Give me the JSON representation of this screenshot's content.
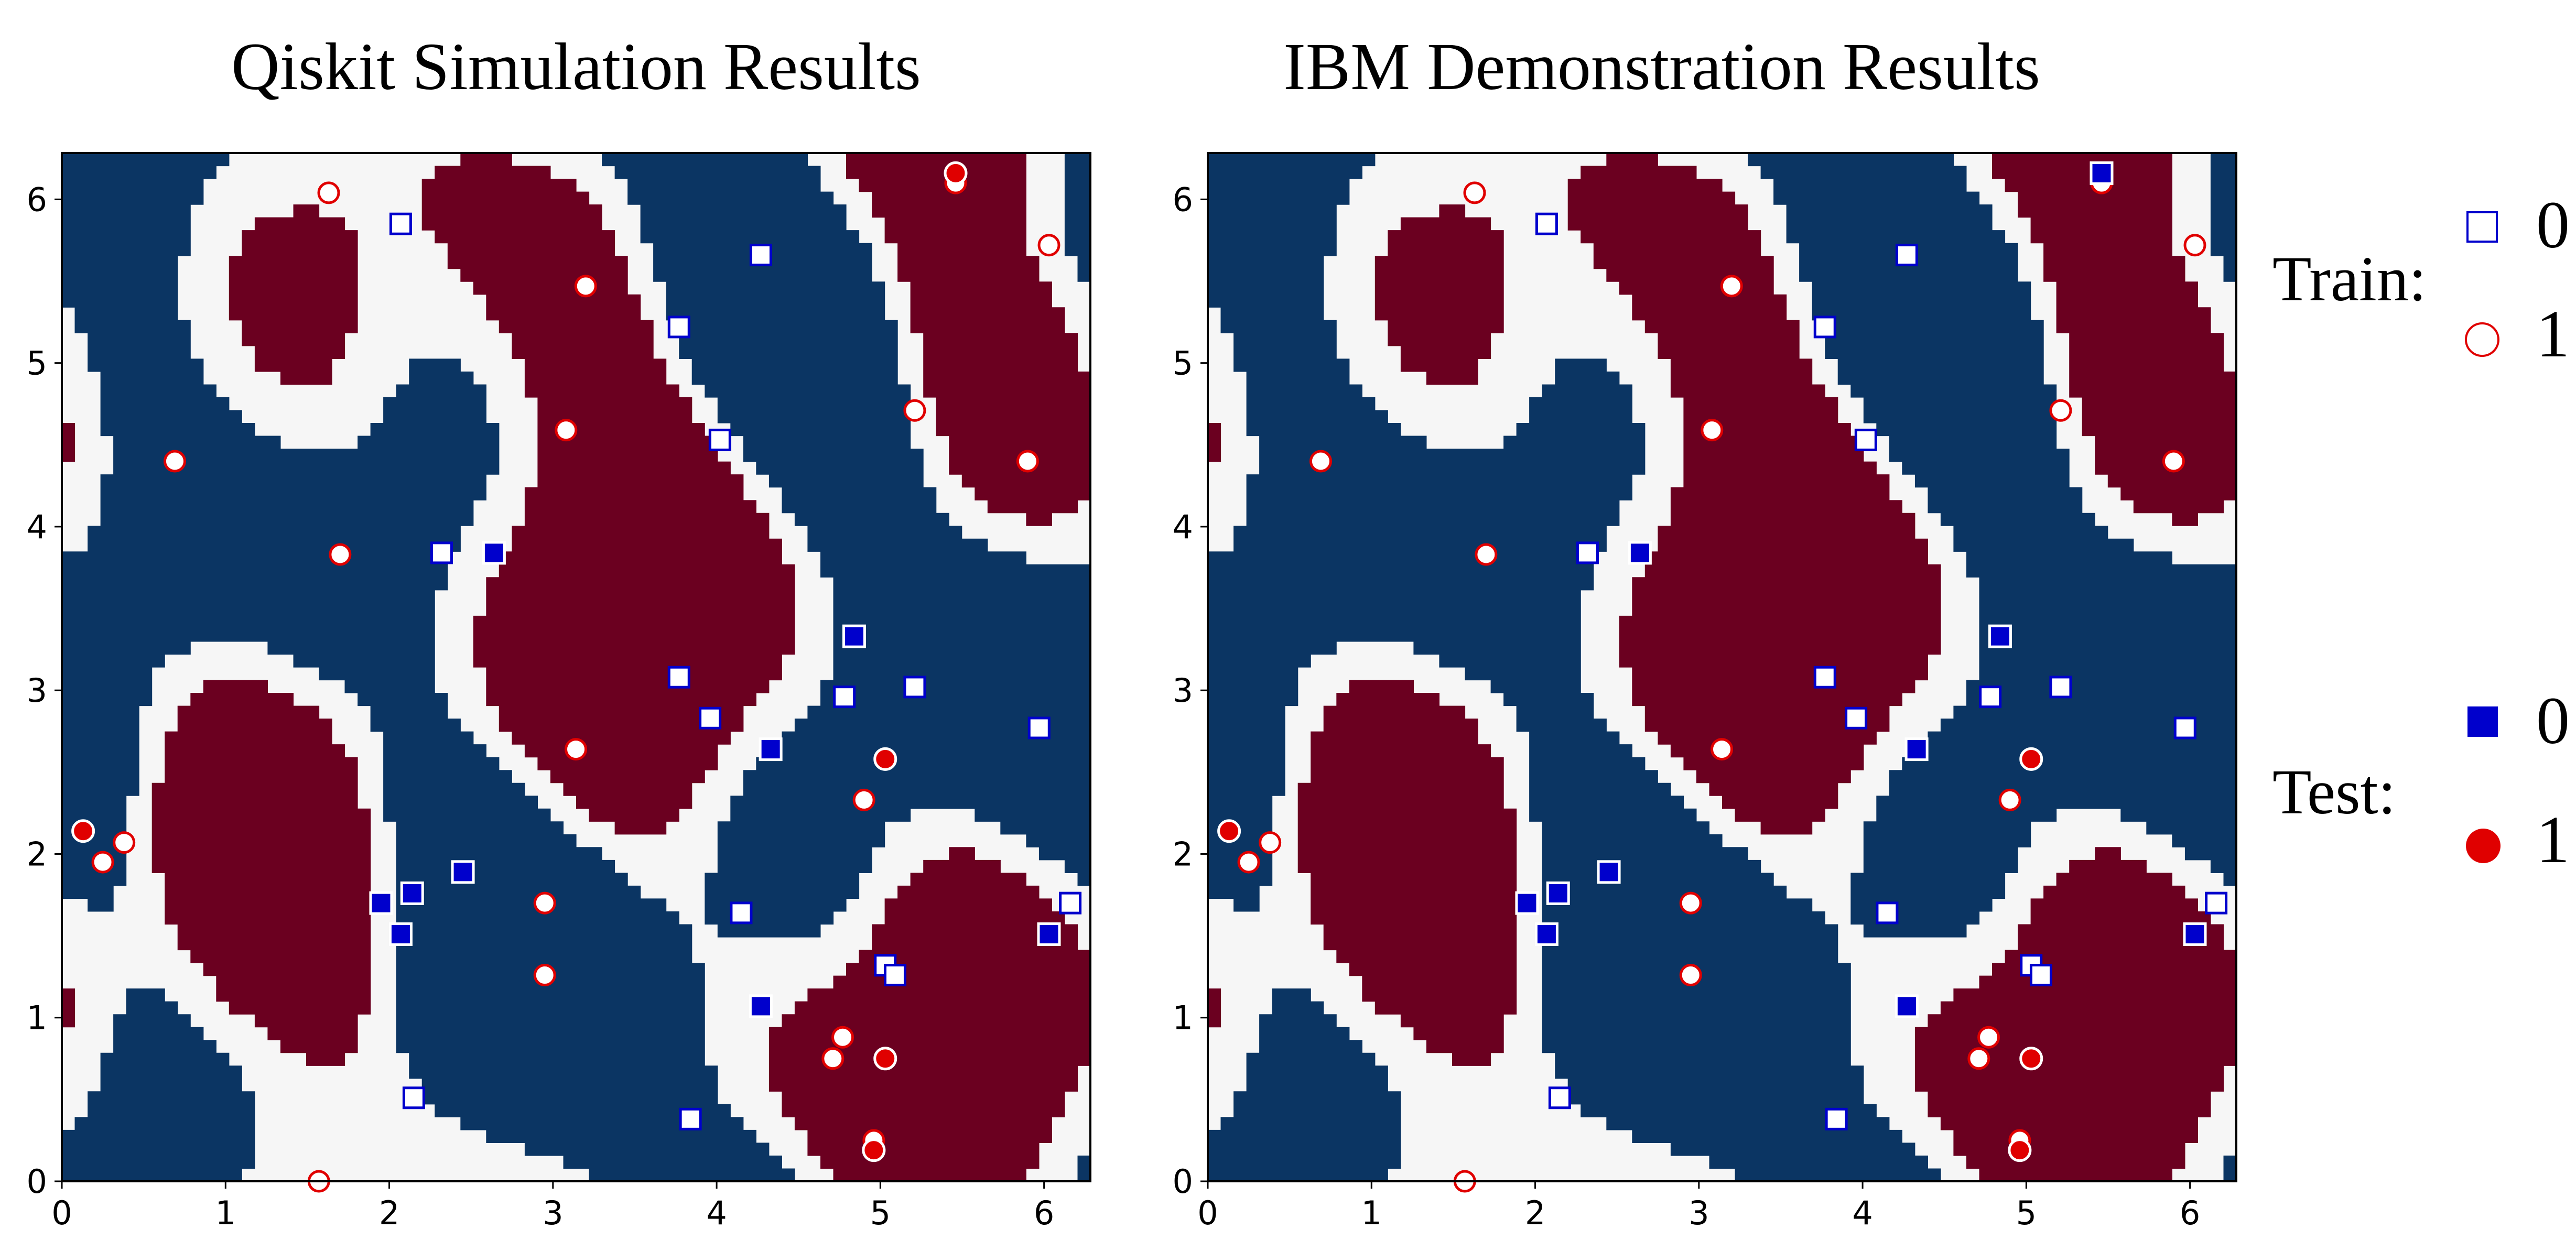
{
  "colors": {
    "region_class_0": "#0b3563",
    "region_class_1": "#6b0020",
    "background": "#f6f6f6",
    "marker_class_0": "#0000cc",
    "marker_class_1": "#e00000"
  },
  "legend": {
    "train_label": "Train:",
    "test_label": "Test:",
    "class_0": "0",
    "class_1": "1"
  },
  "chart_data": [
    {
      "type": "scatter",
      "title": "Qiskit Simulation Results",
      "xlim": [
        0,
        6.283
      ],
      "ylim": [
        0,
        6.283
      ],
      "xticks": [
        "0",
        "1",
        "2",
        "3",
        "4",
        "5",
        "6"
      ],
      "yticks": [
        "0",
        "1",
        "2",
        "3",
        "4",
        "5",
        "6"
      ],
      "background": "decision regions: class 0 (dark blue), class 1 (dark red), unassigned (light gray)",
      "series": [
        {
          "name": "Train 0",
          "marker": "hollow-square",
          "points": [
            [
              2.07,
              5.85
            ],
            [
              3.77,
              5.22
            ],
            [
              4.27,
              5.66
            ],
            [
              4.02,
              4.53
            ],
            [
              2.32,
              3.84
            ],
            [
              3.77,
              3.08
            ],
            [
              3.96,
              2.83
            ],
            [
              4.78,
              2.96
            ],
            [
              5.21,
              3.02
            ],
            [
              5.97,
              2.77
            ],
            [
              4.15,
              1.64
            ],
            [
              5.03,
              1.32
            ],
            [
              5.09,
              1.26
            ],
            [
              6.16,
              1.7
            ],
            [
              2.15,
              0.51
            ],
            [
              3.84,
              0.38
            ]
          ]
        },
        {
          "name": "Train 1",
          "marker": "hollow-circle",
          "points": [
            [
              1.63,
              6.04
            ],
            [
              3.2,
              5.47
            ],
            [
              5.46,
              6.1
            ],
            [
              6.03,
              5.72
            ],
            [
              5.21,
              4.71
            ],
            [
              5.9,
              4.4
            ],
            [
              3.08,
              4.59
            ],
            [
              0.69,
              4.4
            ],
            [
              1.7,
              3.83
            ],
            [
              3.14,
              2.64
            ],
            [
              4.9,
              2.33
            ],
            [
              0.25,
              1.95
            ],
            [
              0.38,
              2.07
            ],
            [
              2.95,
              1.7
            ],
            [
              2.95,
              1.26
            ],
            [
              4.77,
              0.88
            ],
            [
              4.71,
              0.75
            ],
            [
              4.96,
              0.25
            ],
            [
              1.57,
              0.0
            ]
          ]
        },
        {
          "name": "Test 0",
          "marker": "filled-square",
          "points": [
            [
              2.64,
              3.84
            ],
            [
              4.84,
              3.33
            ],
            [
              4.33,
              2.64
            ],
            [
              2.45,
              1.89
            ],
            [
              1.95,
              1.7
            ],
            [
              2.14,
              1.76
            ],
            [
              2.07,
              1.51
            ],
            [
              6.03,
              1.51
            ],
            [
              4.27,
              1.07
            ]
          ]
        },
        {
          "name": "Test 1",
          "marker": "filled-circle",
          "points": [
            [
              5.46,
              6.16
            ],
            [
              5.03,
              2.58
            ],
            [
              0.13,
              2.14
            ],
            [
              5.03,
              0.75
            ],
            [
              4.96,
              0.19
            ]
          ]
        }
      ]
    },
    {
      "type": "scatter",
      "title": "IBM Demonstration Results",
      "xlim": [
        0,
        6.283
      ],
      "ylim": [
        0,
        6.283
      ],
      "xticks": [
        "0",
        "1",
        "2",
        "3",
        "4",
        "5",
        "6"
      ],
      "yticks": [
        "0",
        "1",
        "2",
        "3",
        "4",
        "5",
        "6"
      ],
      "background": "decision regions: class 0 (dark blue), class 1 (dark red), unassigned (light gray)",
      "series": [
        {
          "name": "Train 0",
          "marker": "hollow-square",
          "points": [
            [
              2.07,
              5.85
            ],
            [
              3.77,
              5.22
            ],
            [
              4.27,
              5.66
            ],
            [
              4.02,
              4.53
            ],
            [
              2.32,
              3.84
            ],
            [
              3.77,
              3.08
            ],
            [
              3.96,
              2.83
            ],
            [
              4.78,
              2.96
            ],
            [
              5.21,
              3.02
            ],
            [
              5.97,
              2.77
            ],
            [
              4.15,
              1.64
            ],
            [
              5.03,
              1.32
            ],
            [
              5.09,
              1.26
            ],
            [
              6.16,
              1.7
            ],
            [
              2.15,
              0.51
            ],
            [
              3.84,
              0.38
            ]
          ]
        },
        {
          "name": "Train 1",
          "marker": "hollow-circle",
          "points": [
            [
              1.63,
              6.04
            ],
            [
              3.2,
              5.47
            ],
            [
              5.46,
              6.1
            ],
            [
              6.03,
              5.72
            ],
            [
              5.21,
              4.71
            ],
            [
              5.9,
              4.4
            ],
            [
              3.08,
              4.59
            ],
            [
              0.69,
              4.4
            ],
            [
              1.7,
              3.83
            ],
            [
              3.14,
              2.64
            ],
            [
              4.9,
              2.33
            ],
            [
              0.25,
              1.95
            ],
            [
              0.38,
              2.07
            ],
            [
              2.95,
              1.7
            ],
            [
              2.95,
              1.26
            ],
            [
              4.77,
              0.88
            ],
            [
              4.71,
              0.75
            ],
            [
              4.96,
              0.25
            ],
            [
              1.57,
              0.0
            ]
          ]
        },
        {
          "name": "Test 0",
          "marker": "filled-square",
          "points": [
            [
              5.46,
              6.16
            ],
            [
              2.64,
              3.84
            ],
            [
              4.84,
              3.33
            ],
            [
              4.33,
              2.64
            ],
            [
              2.45,
              1.89
            ],
            [
              1.95,
              1.7
            ],
            [
              2.14,
              1.76
            ],
            [
              2.07,
              1.51
            ],
            [
              6.03,
              1.51
            ],
            [
              4.27,
              1.07
            ]
          ]
        },
        {
          "name": "Test 1",
          "marker": "filled-circle",
          "points": [
            [
              5.03,
              2.58
            ],
            [
              0.13,
              2.14
            ],
            [
              5.03,
              0.75
            ],
            [
              4.96,
              0.19
            ]
          ]
        }
      ]
    }
  ]
}
